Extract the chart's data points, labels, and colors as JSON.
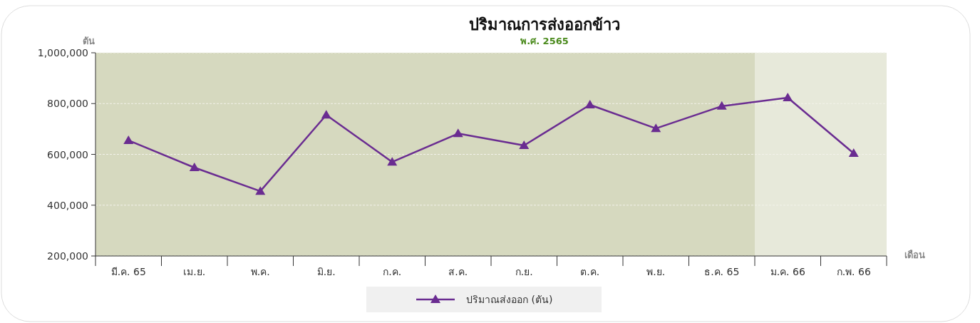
{
  "chart_data": {
    "type": "line",
    "title": "ปริมาณการส่งออกข้าว",
    "subtitle": "พ.ศ. 2565",
    "ylabel": "ตัน",
    "xlabel": "เดือน",
    "categories": [
      "มี.ค. 65",
      "เม.ย.",
      "พ.ค.",
      "มิ.ย.",
      "ก.ค.",
      "ส.ค.",
      "ก.ย.",
      "ต.ค.",
      "พ.ย.",
      "ธ.ค. 65",
      "ม.ค. 66",
      "ก.พ. 66"
    ],
    "series": [
      {
        "name": "ปริมาณส่งออก (ตัน)",
        "color": "#6a2c91",
        "values": [
          655000,
          548000,
          455000,
          755000,
          570000,
          682000,
          635000,
          795000,
          702000,
          790000,
          823000,
          604000
        ]
      }
    ],
    "ylim": [
      200000,
      1000000
    ],
    "yticks": [
      {
        "value": 200000,
        "label": "200,000"
      },
      {
        "value": 400000,
        "label": "400,000"
      },
      {
        "value": 600000,
        "label": "600,000"
      },
      {
        "value": 800000,
        "label": "800,000"
      },
      {
        "value": 1000000,
        "label": "1,000,000"
      }
    ],
    "bands": [
      {
        "axis": "x",
        "from": "ม.ค. 66",
        "to": "ก.พ. 66",
        "color": "#e7e9da"
      }
    ],
    "grid": "y",
    "legend": "bottom",
    "marker": "triangle",
    "line_style": "solid"
  }
}
